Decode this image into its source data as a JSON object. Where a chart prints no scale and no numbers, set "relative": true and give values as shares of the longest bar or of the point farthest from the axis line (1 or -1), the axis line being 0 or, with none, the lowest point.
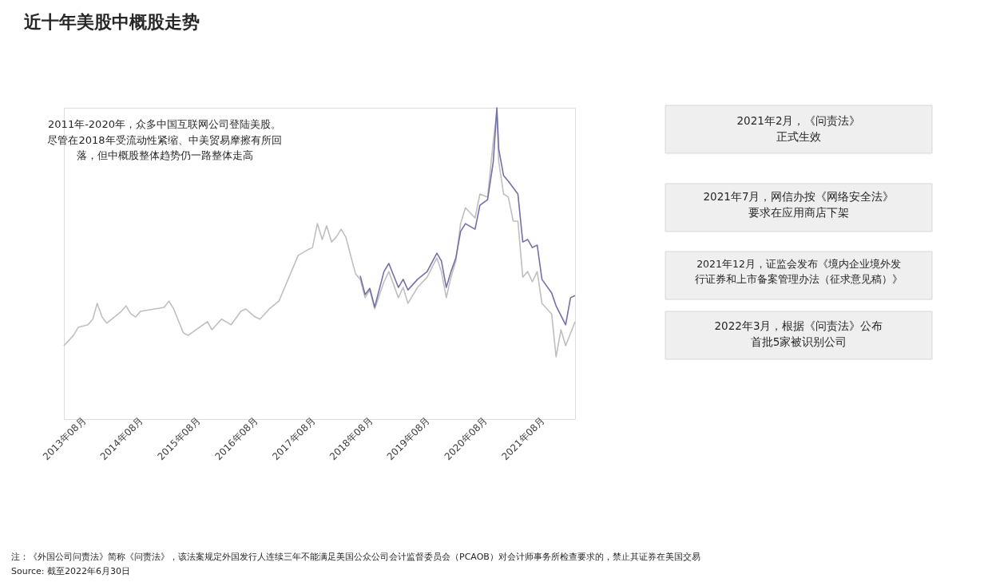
{
  "chart_data": {
    "type": "line",
    "title": "近十年美股中概股走势",
    "relative": true,
    "grid": false,
    "marker": "none",
    "line_style": "solid",
    "xlim": [
      "2013-08-01",
      "2022-06-30"
    ],
    "xticks": [
      {
        "value": "2013-08",
        "label": "2013年08月"
      },
      {
        "value": "2014-08",
        "label": "2014年08月"
      },
      {
        "value": "2015-08",
        "label": "2015年08月"
      },
      {
        "value": "2016-08",
        "label": "2016年08月"
      },
      {
        "value": "2017-08",
        "label": "2017年08月"
      },
      {
        "value": "2018-08",
        "label": "2018年08月"
      },
      {
        "value": "2019-08",
        "label": "2019年08月"
      },
      {
        "value": "2020-08",
        "label": "2020年08月"
      },
      {
        "value": "2021-08",
        "label": "2021年08月"
      }
    ],
    "series": [
      {
        "color": "#7171a8",
        "x": [
          "2018-10",
          "2018-11",
          "2018-12",
          "2019-01",
          "2019-03",
          "2019-04",
          "2019-06",
          "2019-07",
          "2019-08",
          "2019-10",
          "2019-12",
          "2020-02",
          "2020-03",
          "2020-04",
          "2020-05",
          "2020-06",
          "2020-07",
          "2020-08",
          "2020-10",
          "2020-11",
          "2020-12-20",
          "2021-01-25",
          "2021-02-17",
          "2021-03",
          "2021-04",
          "2021-05",
          "2021-07",
          "2021-08",
          "2021-09",
          "2021-10",
          "2021-11",
          "2021-12",
          "2022-02",
          "2022-03",
          "2022-05",
          "2022-06",
          "2022-06-30"
        ],
        "values": [
          0.46,
          0.4,
          0.42,
          0.36,
          0.474,
          0.5,
          0.423,
          0.449,
          0.415,
          0.449,
          0.474,
          0.533,
          0.508,
          0.423,
          0.474,
          0.518,
          0.603,
          0.628,
          0.61,
          0.687,
          0.705,
          0.826,
          1,
          0.867,
          0.782,
          0.764,
          0.723,
          0.569,
          0.577,
          0.551,
          0.559,
          0.449,
          0.405,
          0.364,
          0.303,
          0.39,
          0.397
        ]
      },
      {
        "color": "#bfbfbf",
        "x": [
          "2013-08",
          "2013-10",
          "2013-11",
          "2014-01",
          "2014-02",
          "2014-03",
          "2014-04",
          "2014-05",
          "2014-06",
          "2014-08",
          "2014-09",
          "2014-10",
          "2014-11",
          "2014-12",
          "2015-05",
          "2015-06",
          "2015-07",
          "2015-09",
          "2015-10",
          "2016-02",
          "2016-03",
          "2016-05",
          "2016-07",
          "2016-09",
          "2016-10",
          "2016-12",
          "2017-01",
          "2017-03",
          "2017-05",
          "2017-09",
          "2017-11",
          "2017-12",
          "2018-01",
          "2018-02",
          "2018-03",
          "2018-04",
          "2018-05",
          "2018-06",
          "2018-07",
          "2018-09",
          "2018-10",
          "2018-11",
          "2018-12",
          "2019-01",
          "2019-03",
          "2019-04",
          "2019-06",
          "2019-07",
          "2019-08",
          "2019-10",
          "2019-12",
          "2020-02",
          "2020-03",
          "2020-04",
          "2020-05",
          "2020-06",
          "2020-07",
          "2020-08",
          "2020-10",
          "2020-11",
          "2020-12-20",
          "2021-01-25",
          "2021-02-17",
          "2021-03",
          "2021-04",
          "2021-05",
          "2021-06",
          "2021-07",
          "2021-08",
          "2021-09",
          "2021-10",
          "2021-11",
          "2021-12",
          "2022-02",
          "2022-03",
          "2022-04",
          "2022-05",
          "2022-06-30"
        ],
        "values": [
          0.236,
          0.269,
          0.295,
          0.303,
          0.321,
          0.372,
          0.328,
          0.308,
          0.321,
          0.346,
          0.364,
          0.338,
          0.328,
          0.346,
          0.359,
          0.379,
          0.354,
          0.277,
          0.269,
          0.313,
          0.287,
          0.321,
          0.303,
          0.346,
          0.354,
          0.328,
          0.321,
          0.354,
          0.379,
          0.526,
          0.544,
          0.551,
          0.628,
          0.577,
          0.621,
          0.569,
          0.585,
          0.61,
          0.585,
          0.467,
          0.449,
          0.39,
          0.415,
          0.354,
          0.441,
          0.474,
          0.39,
          0.423,
          0.372,
          0.423,
          0.456,
          0.518,
          0.474,
          0.39,
          0.456,
          0.508,
          0.628,
          0.679,
          0.646,
          0.723,
          0.713,
          0.892,
          0.987,
          0.826,
          0.723,
          0.713,
          0.636,
          0.636,
          0.456,
          0.474,
          0.441,
          0.474,
          0.372,
          0.338,
          0.2,
          0.287,
          0.236,
          0.313
        ]
      }
    ],
    "annotations": [
      "2011年-2020年，众多中国互联网公司登陆美股。尽管在2018年受流动性紧缩、中美贸易摩擦有所回落，但中概股整体趋势仍一路整体走高",
      "2021年2月，《问责法》正式生效",
      "2021年7月，网信办按《网络安全法》要求在应用商店下架",
      "2021年12月，证监会发布《境内企业境外发行证券和上市备案管理办法（征求意见稿）》",
      "2022年3月，根据《问责法》公布首批5家被识别公司",
      "注：《外国公司问责法》简称《问责法》，该法案规定外国发行人连续三年不能满足美国公众公司会计监督委员会（PCAOB）对会计师事务所检查要求的，禁止其证券在美国交易",
      "Source: 截至2022年6月30日"
    ]
  }
}
